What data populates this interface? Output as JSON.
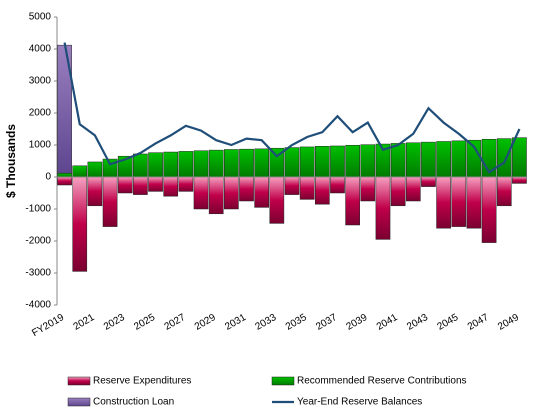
{
  "chart_data": {
    "type": "bar",
    "y_label": "$ Thousands",
    "categories": [
      "FY2019",
      null,
      "2021",
      null,
      "2023",
      null,
      "2025",
      null,
      "2027",
      null,
      "2029",
      null,
      "2031",
      null,
      "2033",
      null,
      "2035",
      null,
      "2037",
      null,
      "2039",
      null,
      "2041",
      null,
      "2043",
      null,
      "2045",
      null,
      "2047",
      null,
      "2049"
    ],
    "ylim": [
      -4000,
      5000
    ],
    "yticks": [
      -4000,
      -3000,
      -2000,
      -1000,
      0,
      1000,
      2000,
      3000,
      4000,
      5000
    ],
    "series": [
      {
        "name": "Reserve Expenditures",
        "color": "#c0004a",
        "values": [
          -250,
          -2950,
          -900,
          -1550,
          -500,
          -550,
          -450,
          -600,
          -450,
          -1000,
          -1150,
          -1000,
          -750,
          -950,
          -1450,
          -550,
          -700,
          -850,
          -500,
          -1500,
          -750,
          -1950,
          -900,
          -750,
          -300,
          -1600,
          -1550,
          -1600,
          -2050,
          -900,
          -200
        ]
      },
      {
        "name": "Recommended Reserve Contributions",
        "color": "#00a000",
        "values": [
          120,
          350,
          470,
          560,
          650,
          720,
          760,
          780,
          800,
          820,
          840,
          860,
          870,
          880,
          900,
          920,
          940,
          960,
          970,
          990,
          1010,
          1030,
          1050,
          1070,
          1090,
          1110,
          1130,
          1150,
          1180,
          1200,
          1230
        ]
      },
      {
        "name": "Construction Loan",
        "color": "#8064a2",
        "values": [
          4000,
          null,
          null,
          null,
          null,
          null,
          null,
          null,
          null,
          null,
          null,
          null,
          null,
          null,
          null,
          null,
          null,
          null,
          null,
          null,
          null,
          null,
          null,
          null,
          null,
          null,
          null,
          null,
          null,
          null,
          null
        ]
      },
      {
        "name": "Year-End Reserve Balances",
        "color": "#1f4e79",
        "type": "line",
        "values": [
          4200,
          1650,
          1300,
          400,
          550,
          750,
          1050,
          1300,
          1600,
          1450,
          1150,
          1000,
          1200,
          1150,
          650,
          1000,
          1250,
          1400,
          1900,
          1400,
          1700,
          850,
          1000,
          1350,
          2150,
          1700,
          1350,
          950,
          150,
          450,
          1500
        ]
      }
    ]
  }
}
